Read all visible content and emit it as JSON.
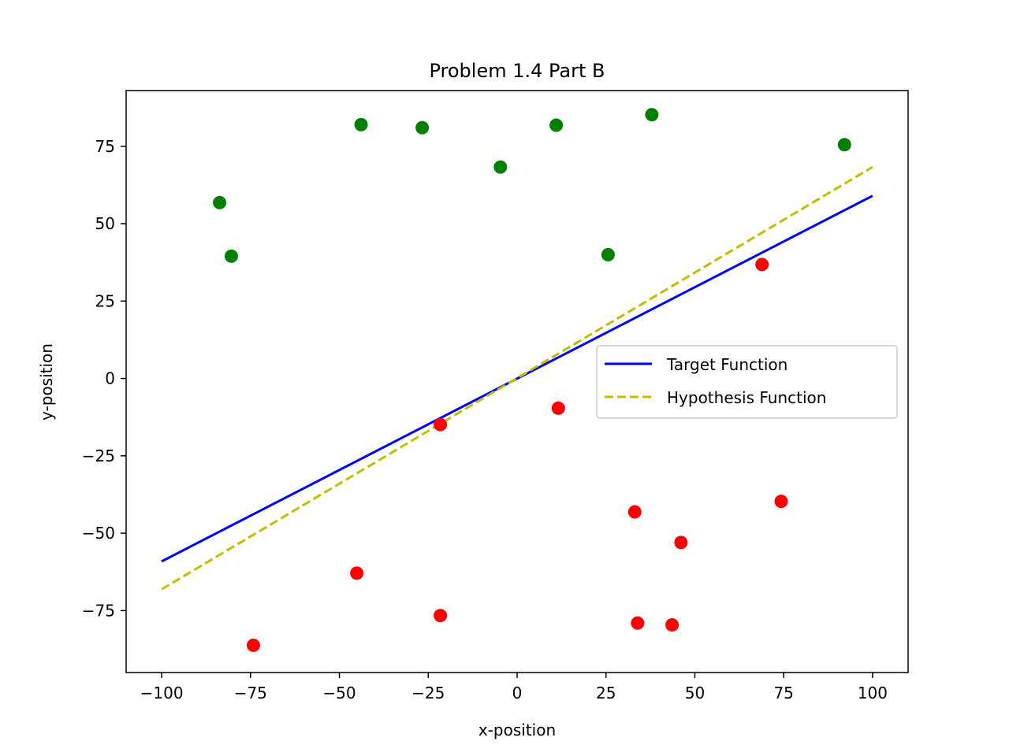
{
  "chart_data": {
    "type": "scatter",
    "title": "Problem 1.4 Part B",
    "xlabel": "x-position",
    "ylabel": "y-position",
    "xlim": [
      -110,
      110
    ],
    "ylim": [
      -95,
      93
    ],
    "xticks": [
      -100,
      -75,
      -50,
      -25,
      0,
      25,
      50,
      75,
      100
    ],
    "yticks": [
      -75,
      -50,
      -25,
      0,
      25,
      50,
      75
    ],
    "xtick_labels": [
      "−100",
      "−75",
      "−50",
      "−25",
      "0",
      "25",
      "50",
      "75",
      "100"
    ],
    "ytick_labels": [
      "−75",
      "−50",
      "−25",
      "0",
      "25",
      "50",
      "75"
    ],
    "grid": false,
    "legend_position": "center-right",
    "series": [
      {
        "kind": "points",
        "color": "#008000",
        "points": [
          [
            -83.7,
            56.8
          ],
          [
            -80.4,
            39.5
          ],
          [
            -43.9,
            82.0
          ],
          [
            -26.7,
            81.0
          ],
          [
            -4.7,
            68.3
          ],
          [
            11.0,
            81.8
          ],
          [
            25.6,
            40.0
          ],
          [
            37.9,
            85.2
          ],
          [
            92.1,
            75.5
          ]
        ]
      },
      {
        "kind": "points",
        "color": "#ff0000",
        "points": [
          [
            -74.2,
            -86.2
          ],
          [
            -45.1,
            -62.9
          ],
          [
            -21.6,
            -76.6
          ],
          [
            -21.6,
            -14.9
          ],
          [
            11.6,
            -9.6
          ],
          [
            33.1,
            -43.1
          ],
          [
            33.9,
            -79.0
          ],
          [
            43.6,
            -79.6
          ],
          [
            46.1,
            -53.0
          ],
          [
            68.9,
            36.8
          ],
          [
            74.3,
            -39.7
          ]
        ]
      },
      {
        "kind": "line",
        "name": "Target Function",
        "color": "#0000ff",
        "dash": "solid",
        "x": [
          -100,
          100
        ],
        "y": [
          -59.1,
          59.0
        ]
      },
      {
        "kind": "line",
        "name": "Hypothesis Function",
        "color": "#bfbf00",
        "dash": "dashed",
        "x": [
          -100,
          100
        ],
        "y": [
          -68.1,
          68.3
        ]
      }
    ]
  }
}
